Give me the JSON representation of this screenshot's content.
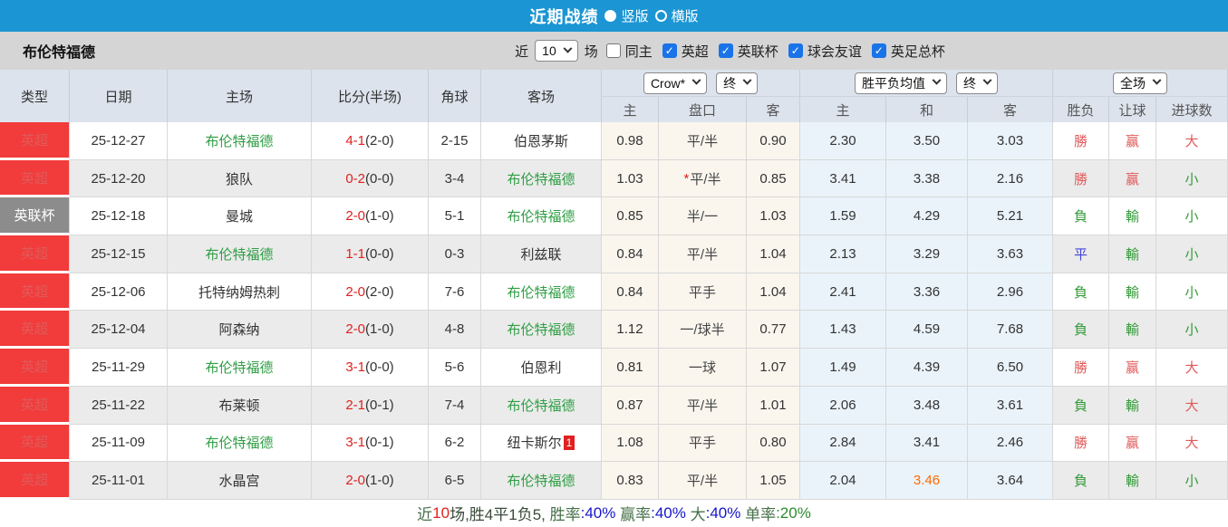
{
  "titlebar": {
    "title": "近期战绩",
    "radios": [
      {
        "label": "竖版",
        "checked": true
      },
      {
        "label": "横版",
        "checked": false
      }
    ]
  },
  "filterbar": {
    "team": "布伦特福德",
    "near_label": "近",
    "count_value": "10",
    "games_label": "场",
    "same_home_label": "同主",
    "same_home_checked": false,
    "leagues": [
      "英超",
      "英联杯",
      "球会友谊",
      "英足总杯"
    ]
  },
  "table": {
    "left_headers": [
      "类型",
      "日期",
      "主场",
      "比分(半场)",
      "角球",
      "客场"
    ],
    "selects": {
      "company": "Crow*",
      "company_time": "终",
      "avg": "胜平负均值",
      "avg_time": "终",
      "scope": "全场"
    },
    "sub_headers": [
      "主",
      "盘口",
      "客",
      "主",
      "和",
      "客",
      "胜负",
      "让球",
      "进球数"
    ],
    "rows": [
      {
        "league": "英超",
        "league_c": "red",
        "date": "25-12-27",
        "home": "布伦特福德",
        "home_on": true,
        "score": "4-1",
        "half": "(2-0)",
        "corner": "2-15",
        "away": "伯恩茅斯",
        "away_on": false,
        "away_badge": "",
        "o1": "0.98",
        "star": "",
        "line": "平/半",
        "o2": "0.90",
        "a1": "2.30",
        "a2": "3.50",
        "a3": "3.03",
        "a2_hot": false,
        "wdl": "勝",
        "wdl_c": "red",
        "let": "赢",
        "let_c": "red",
        "goal": "大",
        "goal_c": "red"
      },
      {
        "league": "英超",
        "league_c": "red",
        "date": "25-12-20",
        "home": "狼队",
        "home_on": false,
        "score": "0-2",
        "half": "(0-0)",
        "corner": "3-4",
        "away": "布伦特福德",
        "away_on": true,
        "away_badge": "",
        "o1": "1.03",
        "star": "*",
        "line": "平/半",
        "o2": "0.85",
        "a1": "3.41",
        "a2": "3.38",
        "a3": "2.16",
        "a2_hot": false,
        "wdl": "勝",
        "wdl_c": "red",
        "let": "赢",
        "let_c": "red",
        "goal": "小",
        "goal_c": "green"
      },
      {
        "league": "英联杯",
        "league_c": "gray",
        "date": "25-12-18",
        "home": "曼城",
        "home_on": false,
        "score": "2-0",
        "half": "(1-0)",
        "corner": "5-1",
        "away": "布伦特福德",
        "away_on": true,
        "away_badge": "",
        "o1": "0.85",
        "star": "",
        "line": "半/一",
        "o2": "1.03",
        "a1": "1.59",
        "a2": "4.29",
        "a3": "5.21",
        "a2_hot": false,
        "wdl": "負",
        "wdl_c": "green",
        "let": "輸",
        "let_c": "green",
        "goal": "小",
        "goal_c": "green"
      },
      {
        "league": "英超",
        "league_c": "red",
        "date": "25-12-15",
        "home": "布伦特福德",
        "home_on": true,
        "score": "1-1",
        "half": "(0-0)",
        "corner": "0-3",
        "away": "利兹联",
        "away_on": false,
        "away_badge": "",
        "o1": "0.84",
        "star": "",
        "line": "平/半",
        "o2": "1.04",
        "a1": "2.13",
        "a2": "3.29",
        "a3": "3.63",
        "a2_hot": false,
        "wdl": "平",
        "wdl_c": "blue",
        "let": "輸",
        "let_c": "green",
        "goal": "小",
        "goal_c": "green"
      },
      {
        "league": "英超",
        "league_c": "red",
        "date": "25-12-06",
        "home": "托特纳姆热刺",
        "home_on": false,
        "score": "2-0",
        "half": "(2-0)",
        "corner": "7-6",
        "away": "布伦特福德",
        "away_on": true,
        "away_badge": "",
        "o1": "0.84",
        "star": "",
        "line": "平手",
        "o2": "1.04",
        "a1": "2.41",
        "a2": "3.36",
        "a3": "2.96",
        "a2_hot": false,
        "wdl": "負",
        "wdl_c": "green",
        "let": "輸",
        "let_c": "green",
        "goal": "小",
        "goal_c": "green"
      },
      {
        "league": "英超",
        "league_c": "red",
        "date": "25-12-04",
        "home": "阿森纳",
        "home_on": false,
        "score": "2-0",
        "half": "(1-0)",
        "corner": "4-8",
        "away": "布伦特福德",
        "away_on": true,
        "away_badge": "",
        "o1": "1.12",
        "star": "",
        "line": "一/球半",
        "o2": "0.77",
        "a1": "1.43",
        "a2": "4.59",
        "a3": "7.68",
        "a2_hot": false,
        "wdl": "負",
        "wdl_c": "green",
        "let": "輸",
        "let_c": "green",
        "goal": "小",
        "goal_c": "green"
      },
      {
        "league": "英超",
        "league_c": "red",
        "date": "25-11-29",
        "home": "布伦特福德",
        "home_on": true,
        "score": "3-1",
        "half": "(0-0)",
        "corner": "5-6",
        "away": "伯恩利",
        "away_on": false,
        "away_badge": "",
        "o1": "0.81",
        "star": "",
        "line": "一球",
        "o2": "1.07",
        "a1": "1.49",
        "a2": "4.39",
        "a3": "6.50",
        "a2_hot": false,
        "wdl": "勝",
        "wdl_c": "red",
        "let": "赢",
        "let_c": "red",
        "goal": "大",
        "goal_c": "red"
      },
      {
        "league": "英超",
        "league_c": "red",
        "date": "25-11-22",
        "home": "布莱顿",
        "home_on": false,
        "score": "2-1",
        "half": "(0-1)",
        "corner": "7-4",
        "away": "布伦特福德",
        "away_on": true,
        "away_badge": "",
        "o1": "0.87",
        "star": "",
        "line": "平/半",
        "o2": "1.01",
        "a1": "2.06",
        "a2": "3.48",
        "a3": "3.61",
        "a2_hot": false,
        "wdl": "負",
        "wdl_c": "green",
        "let": "輸",
        "let_c": "green",
        "goal": "大",
        "goal_c": "red"
      },
      {
        "league": "英超",
        "league_c": "red",
        "date": "25-11-09",
        "home": "布伦特福德",
        "home_on": true,
        "score": "3-1",
        "half": "(0-1)",
        "corner": "6-2",
        "away": "纽卡斯尔",
        "away_on": false,
        "away_badge": "1",
        "o1": "1.08",
        "star": "",
        "line": "平手",
        "o2": "0.80",
        "a1": "2.84",
        "a2": "3.41",
        "a3": "2.46",
        "a2_hot": false,
        "wdl": "勝",
        "wdl_c": "red",
        "let": "赢",
        "let_c": "red",
        "goal": "大",
        "goal_c": "red"
      },
      {
        "league": "英超",
        "league_c": "red",
        "date": "25-11-01",
        "home": "水晶宫",
        "home_on": false,
        "score": "2-0",
        "half": "(1-0)",
        "corner": "6-5",
        "away": "布伦特福德",
        "away_on": true,
        "away_badge": "",
        "o1": "0.83",
        "star": "",
        "line": "平/半",
        "o2": "1.05",
        "a1": "2.04",
        "a2": "3.46",
        "a3": "3.64",
        "a2_hot": true,
        "wdl": "負",
        "wdl_c": "green",
        "let": "輸",
        "let_c": "green",
        "goal": "小",
        "goal_c": "green"
      }
    ]
  },
  "summary": {
    "segments": [
      {
        "text": "近",
        "c": "label"
      },
      {
        "text": "10",
        "c": "red"
      },
      {
        "text": "场,胜4平1负5, ",
        "c": "dark"
      },
      {
        "text": "胜率",
        "c": "label"
      },
      {
        "text": ":40%",
        "c": "blue"
      },
      {
        "text": " 赢率",
        "c": "label"
      },
      {
        "text": ":40%",
        "c": "blue"
      },
      {
        "text": " 大",
        "c": "label"
      },
      {
        "text": ":40%",
        "c": "blue"
      },
      {
        "text": " 单率",
        "c": "label"
      },
      {
        "text": ":20%",
        "c": "green"
      }
    ]
  },
  "colors": {
    "accent_blue": "#1b95d3",
    "badge_red": "#f23b3b",
    "badge_gray": "#8c8c8c",
    "team_green": "#2f9e44",
    "score_red": "#e02020",
    "hot_orange": "#ff6a00",
    "rate_blue": "#1515cc",
    "rate_green": "#2e8b2e",
    "checkbox_blue": "#1a73e8"
  }
}
